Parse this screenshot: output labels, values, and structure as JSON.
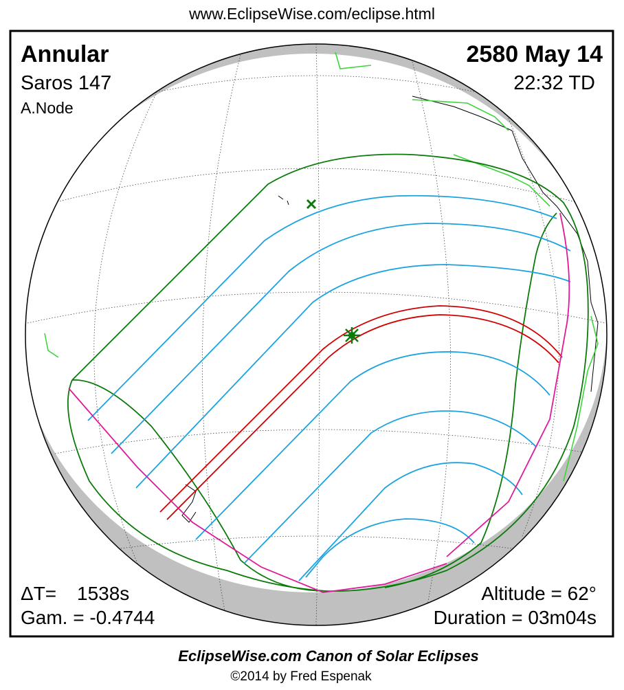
{
  "header": {
    "url": "www.EclipseWise.com/eclipse.html"
  },
  "eclipse": {
    "type": "Annular",
    "saros": "Saros 147",
    "node": "A.Node",
    "date": "2580 May 14",
    "time": "22:32 TD"
  },
  "parameters": {
    "delta_t_label": "ΔT=",
    "delta_t_value": "1538s",
    "gamma": "Gam. = -0.4744",
    "altitude": "Altitude = 62°",
    "duration": "Duration = 03m04s"
  },
  "footer": {
    "title": "EclipseWise.com Canon of Solar Eclipses",
    "credit": "©2014 by Fred Espenak"
  }
}
